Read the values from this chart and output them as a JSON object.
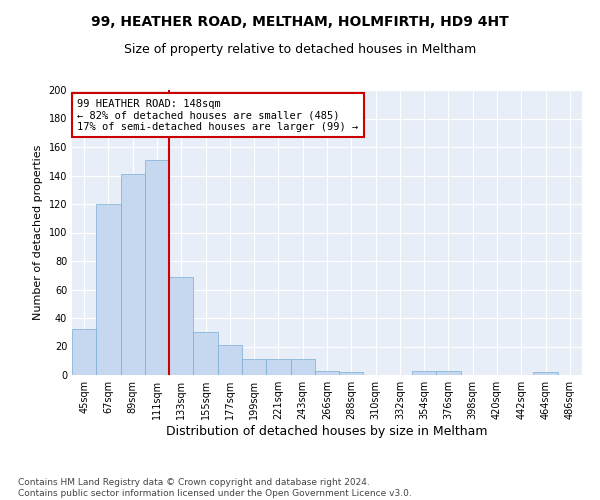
{
  "title": "99, HEATHER ROAD, MELTHAM, HOLMFIRTH, HD9 4HT",
  "subtitle": "Size of property relative to detached houses in Meltham",
  "xlabel": "Distribution of detached houses by size in Meltham",
  "ylabel": "Number of detached properties",
  "bar_color": "#c5d8f0",
  "bar_edge_color": "#7aadd4",
  "bg_color": "#e8eef8",
  "grid_color": "#ffffff",
  "categories": [
    "45sqm",
    "67sqm",
    "89sqm",
    "111sqm",
    "133sqm",
    "155sqm",
    "177sqm",
    "199sqm",
    "221sqm",
    "243sqm",
    "266sqm",
    "288sqm",
    "310sqm",
    "332sqm",
    "354sqm",
    "376sqm",
    "398sqm",
    "420sqm",
    "442sqm",
    "464sqm",
    "486sqm"
  ],
  "values": [
    32,
    120,
    141,
    151,
    69,
    30,
    21,
    11,
    11,
    11,
    3,
    2,
    0,
    0,
    3,
    3,
    0,
    0,
    0,
    2,
    0
  ],
  "vline_color": "#cc0000",
  "annotation_text": "99 HEATHER ROAD: 148sqm\n← 82% of detached houses are smaller (485)\n17% of semi-detached houses are larger (99) →",
  "annotation_box_color": "#cc0000",
  "ylim": [
    0,
    200
  ],
  "yticks": [
    0,
    20,
    40,
    60,
    80,
    100,
    120,
    140,
    160,
    180,
    200
  ],
  "footer": "Contains HM Land Registry data © Crown copyright and database right 2024.\nContains public sector information licensed under the Open Government Licence v3.0.",
  "title_fontsize": 10,
  "subtitle_fontsize": 9,
  "xlabel_fontsize": 9,
  "ylabel_fontsize": 8,
  "tick_fontsize": 7,
  "annotation_fontsize": 7.5,
  "footer_fontsize": 6.5
}
